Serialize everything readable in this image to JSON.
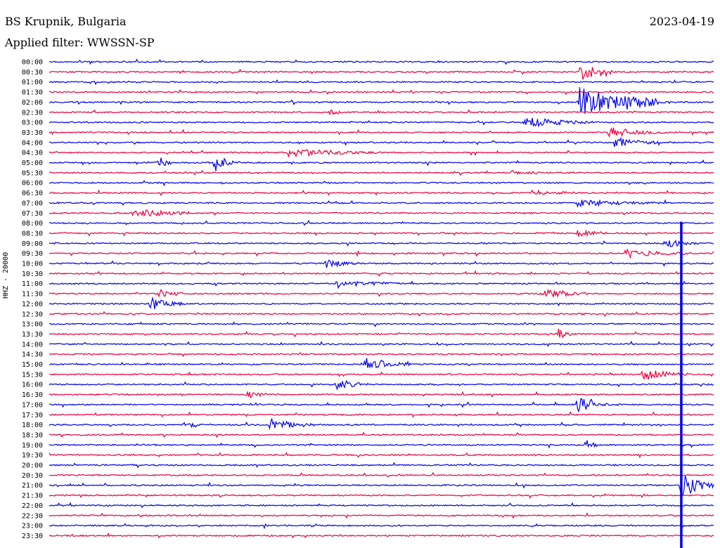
{
  "header": {
    "station": "BS Krupnik, Bulgaria",
    "filter": "Applied filter: WWSSN-SP",
    "date": "2023-04-19"
  },
  "channel_label": "HHZ - 20000",
  "colors": {
    "even_row": "#0000e6",
    "odd_row": "#e6003c"
  },
  "chart_data": {
    "type": "helicorder",
    "title": "BS Krupnik, Bulgaria",
    "subtitle": "Applied filter: WWSSN-SP",
    "ylabel": "HHZ - 20000",
    "row_labels": [
      "00:00",
      "00:30",
      "01:00",
      "01:30",
      "02:00",
      "02:30",
      "03:00",
      "03:30",
      "04:00",
      "04:30",
      "05:00",
      "05:30",
      "06:00",
      "06:30",
      "07:00",
      "07:30",
      "08:00",
      "08:30",
      "09:00",
      "09:30",
      "10:00",
      "10:30",
      "11:00",
      "11:30",
      "12:00",
      "12:30",
      "13:00",
      "13:30",
      "14:00",
      "14:30",
      "15:00",
      "15:30",
      "16:00",
      "16:30",
      "17:00",
      "17:30",
      "18:00",
      "18:30",
      "19:00",
      "19:30",
      "20:00",
      "20:30",
      "21:00",
      "21:30",
      "22:00",
      "22:30",
      "23:00",
      "23:30"
    ],
    "row_minutes": 30,
    "events": [
      {
        "row": 1,
        "minute": 24.0,
        "amp": 0.9,
        "dur": 1.5
      },
      {
        "row": 4,
        "minute": 23.9,
        "amp": 1.7,
        "dur": 3.5
      },
      {
        "row": 4,
        "minute": 26.0,
        "amp": 0.4,
        "dur": 2.0
      },
      {
        "row": 5,
        "minute": 12.7,
        "amp": 0.4,
        "dur": 0.5
      },
      {
        "row": 6,
        "minute": 21.5,
        "amp": 0.5,
        "dur": 3.0
      },
      {
        "row": 7,
        "minute": 25.3,
        "amp": 0.5,
        "dur": 2.5
      },
      {
        "row": 8,
        "minute": 25.5,
        "amp": 0.5,
        "dur": 2.0
      },
      {
        "row": 9,
        "minute": 10.8,
        "amp": 0.4,
        "dur": 4.0
      },
      {
        "row": 10,
        "minute": 5.0,
        "amp": 0.6,
        "dur": 0.5
      },
      {
        "row": 10,
        "minute": 7.5,
        "amp": 0.9,
        "dur": 0.8
      },
      {
        "row": 11,
        "minute": 20.8,
        "amp": 0.3,
        "dur": 1.5
      },
      {
        "row": 13,
        "minute": 21.8,
        "amp": 0.3,
        "dur": 2.0
      },
      {
        "row": 14,
        "minute": 23.8,
        "amp": 0.3,
        "dur": 4.0
      },
      {
        "row": 15,
        "minute": 3.8,
        "amp": 0.5,
        "dur": 2.5
      },
      {
        "row": 17,
        "minute": 23.8,
        "amp": 0.4,
        "dur": 1.5
      },
      {
        "row": 18,
        "minute": 27.8,
        "amp": 0.4,
        "dur": 1.5
      },
      {
        "row": 19,
        "minute": 26.0,
        "amp": 0.4,
        "dur": 3.0
      },
      {
        "row": 20,
        "minute": 12.5,
        "amp": 0.4,
        "dur": 1.5
      },
      {
        "row": 22,
        "minute": 13.0,
        "amp": 0.4,
        "dur": 3.0
      },
      {
        "row": 23,
        "minute": 5.0,
        "amp": 0.4,
        "dur": 1.0
      },
      {
        "row": 23,
        "minute": 22.3,
        "amp": 0.5,
        "dur": 2.0
      },
      {
        "row": 24,
        "minute": 4.6,
        "amp": 0.6,
        "dur": 1.5
      },
      {
        "row": 27,
        "minute": 23.0,
        "amp": 0.6,
        "dur": 0.5
      },
      {
        "row": 30,
        "minute": 14.3,
        "amp": 0.6,
        "dur": 2.0
      },
      {
        "row": 31,
        "minute": 26.8,
        "amp": 0.6,
        "dur": 2.0
      },
      {
        "row": 32,
        "minute": 13.0,
        "amp": 0.5,
        "dur": 1.5
      },
      {
        "row": 33,
        "minute": 9.0,
        "amp": 0.4,
        "dur": 1.0
      },
      {
        "row": 34,
        "minute": 23.8,
        "amp": 0.7,
        "dur": 2.0
      },
      {
        "row": 36,
        "minute": 6.4,
        "amp": 0.4,
        "dur": 0.5
      },
      {
        "row": 36,
        "minute": 10.0,
        "amp": 0.6,
        "dur": 2.0
      },
      {
        "row": 38,
        "minute": 24.2,
        "amp": 0.7,
        "dur": 0.5
      },
      {
        "row": 42,
        "minute": 28.5,
        "amp": 1.3,
        "dur": 1.5
      }
    ],
    "spike": {
      "minute": 28.5,
      "from_row": 16,
      "to_row": 47
    }
  }
}
